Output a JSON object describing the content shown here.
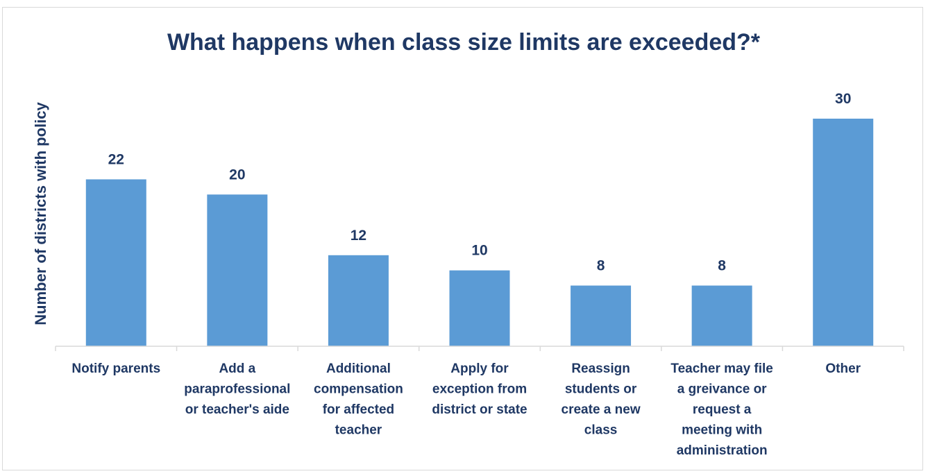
{
  "chart_data": {
    "type": "bar",
    "title": "What happens when class size limits are exceeded?*",
    "ylabel": "Number of districts with policy",
    "xlabel": "",
    "categories": [
      [
        "Notify parents"
      ],
      [
        "Add a",
        "paraprofessional",
        "or teacher's aide"
      ],
      [
        "Additional",
        "compensation",
        "for affected",
        "teacher"
      ],
      [
        "Apply for",
        "exception from",
        "district or state"
      ],
      [
        "Reassign",
        "students or",
        "create a new",
        "class"
      ],
      [
        "Teacher may file",
        "a greivance or",
        "request a",
        "meeting with",
        "administration"
      ],
      [
        "Other"
      ]
    ],
    "values": [
      22,
      20,
      12,
      10,
      8,
      8,
      30
    ],
    "data_labels": [
      "22",
      "20",
      "12",
      "10",
      "8",
      "8",
      "30"
    ],
    "ylim": [
      0,
      30
    ],
    "grid": false,
    "legend": "none",
    "colors": {
      "bar": "#5b9bd5",
      "text": "#1f3864",
      "axis": "#d9d9d9"
    }
  }
}
